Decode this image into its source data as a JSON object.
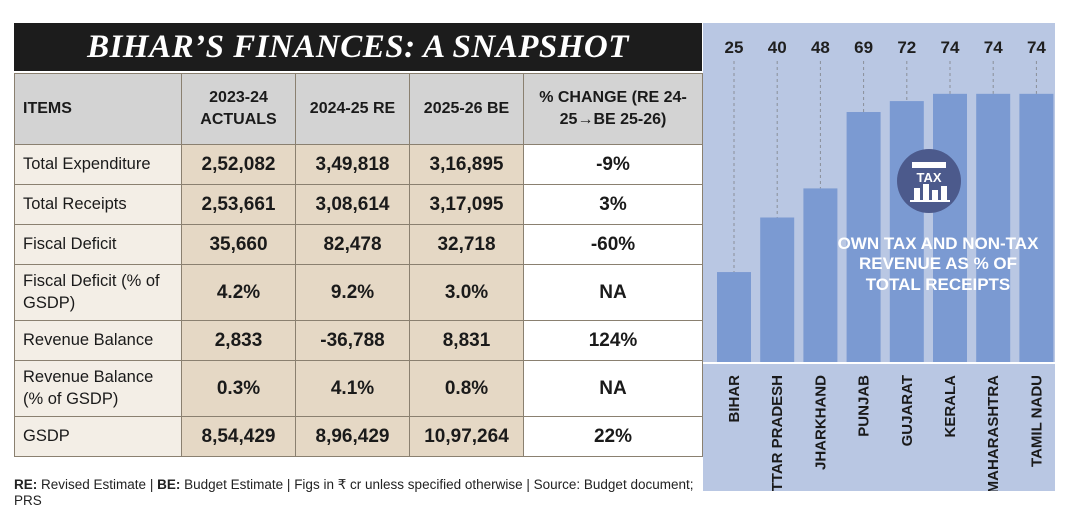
{
  "title": "BIHAR’S FINANCES: A SNAPSHOT",
  "table": {
    "headers": [
      "ITEMS",
      "2023-24 ACTUALS",
      "2024-25 RE",
      "2025-26 BE",
      "% CHANGE (RE 24-25→BE 25-26)"
    ],
    "rows": [
      {
        "item": "Total Expenditure",
        "actuals_2023_24": "2,52,082",
        "re_2024_25": "3,49,818",
        "be_2025_26": "3,16,895",
        "change": "-9%"
      },
      {
        "item": "Total Receipts",
        "actuals_2023_24": "2,53,661",
        "re_2024_25": "3,08,614",
        "be_2025_26": "3,17,095",
        "change": "3%"
      },
      {
        "item": "Fiscal Deficit",
        "actuals_2023_24": "35,660",
        "re_2024_25": "82,478",
        "be_2025_26": "32,718",
        "change": "-60%"
      },
      {
        "item": "Fiscal Deficit (% of GSDP)",
        "actuals_2023_24": "4.2%",
        "re_2024_25": "9.2%",
        "be_2025_26": "3.0%",
        "change": "NA"
      },
      {
        "item": "Revenue Balance",
        "actuals_2023_24": "2,833",
        "re_2024_25": "-36,788",
        "be_2025_26": "8,831",
        "change": "124%"
      },
      {
        "item": "Revenue Balance (% of GSDP)",
        "actuals_2023_24": "0.3%",
        "re_2024_25": "4.1%",
        "be_2025_26": "0.8%",
        "change": "NA"
      },
      {
        "item": "GSDP",
        "actuals_2023_24": "8,54,429",
        "re_2024_25": "8,96,429",
        "be_2025_26": "10,97,264",
        "change": "22%"
      }
    ]
  },
  "footnote": {
    "re_key": "RE:",
    "re_text": "Revised Estimate",
    "be_key": "BE:",
    "be_text": "Budget Estimate | Figs in ₹ cr unless specified otherwise | Source: Budget document; PRS",
    "separator": "|"
  },
  "chart_data": {
    "type": "bar",
    "title": "",
    "annotation": "OWN TAX AND NON-TAX REVENUE AS % OF TOTAL RECEIPTS",
    "categories": [
      "BIHAR",
      "UTTAR PRADESH",
      "JHARKHAND",
      "PUNJAB",
      "GUJARAT",
      "KERALA",
      "MAHARASHTRA",
      "TAMIL NADU"
    ],
    "values": [
      25,
      40,
      48,
      69,
      72,
      74,
      74,
      74
    ],
    "xlabel": "",
    "ylabel": "",
    "ylim": [
      0,
      80
    ],
    "grid": false,
    "legend": "none",
    "bar_color": "#7b9ad2",
    "background_color": "#b9c7e3",
    "icon": "tax-icon"
  }
}
